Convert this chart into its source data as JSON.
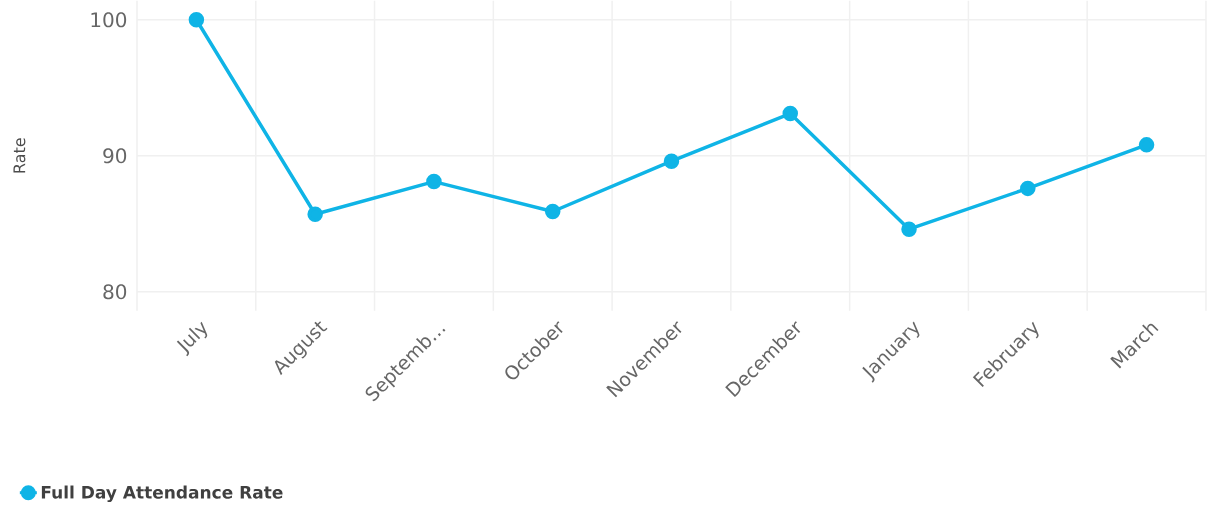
{
  "chart_data": {
    "type": "line",
    "ylabel": "Rate",
    "categories": [
      "July",
      "August",
      "Septemb…",
      "October",
      "November",
      "December",
      "January",
      "February",
      "March"
    ],
    "series": [
      {
        "name": "Full Day Attendance Rate",
        "color": "#0fb4e6",
        "values": [
          100,
          85.7,
          88.1,
          85.9,
          89.6,
          93.1,
          84.6,
          87.6,
          90.8
        ]
      }
    ],
    "ylim": [
      78.6,
      101.4
    ],
    "yticks": [
      80,
      90,
      100
    ],
    "grid": true,
    "legend": "bottom left",
    "marker": "circle",
    "line_style": "solid"
  }
}
